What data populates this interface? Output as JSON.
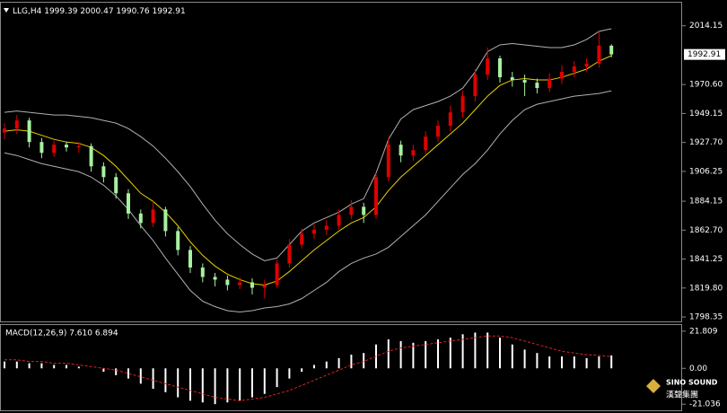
{
  "chart_data": [
    {
      "type": "candlestick",
      "title": "LLG,H4",
      "up_color": "#e00000",
      "down_color": "#a8f0a0",
      "open": [
        1935,
        1938,
        1944,
        1928,
        1920,
        1926,
        1924,
        1925,
        1910,
        1902,
        1890,
        1875,
        1868,
        1878,
        1862,
        1848,
        1835,
        1828,
        1826,
        1822,
        1824,
        1820,
        1822,
        1838,
        1852,
        1860,
        1863,
        1866,
        1874,
        1880,
        1874,
        1902,
        1926,
        1918,
        1922,
        1932,
        1940,
        1950,
        1962,
        1978,
        1990,
        1976,
        1974,
        1972,
        1968,
        1975,
        1980,
        1984,
        1986,
        1999.39
      ],
      "high": [
        1942,
        1948,
        1946,
        1931,
        1929,
        1928,
        1928,
        1927,
        1913,
        1905,
        1893,
        1878,
        1884,
        1880,
        1865,
        1851,
        1838,
        1831,
        1829,
        1828,
        1827,
        1826,
        1841,
        1856,
        1864,
        1867,
        1870,
        1878,
        1885,
        1883,
        1905,
        1931,
        1929,
        1926,
        1936,
        1944,
        1955,
        1966,
        1982,
        1998,
        1992,
        1980,
        1978,
        1975,
        1979,
        1985,
        1988,
        1990,
        2010,
        2000.47
      ],
      "low": [
        1930,
        1934,
        1924,
        1916,
        1917,
        1921,
        1920,
        1906,
        1898,
        1886,
        1871,
        1864,
        1865,
        1858,
        1844,
        1831,
        1824,
        1821,
        1818,
        1819,
        1815,
        1812,
        1820,
        1835,
        1849,
        1856,
        1859,
        1863,
        1871,
        1868,
        1871,
        1899,
        1913,
        1914,
        1919,
        1928,
        1936,
        1946,
        1958,
        1974,
        1972,
        1969,
        1962,
        1964,
        1965,
        1971,
        1976,
        1980,
        1983,
        1990.76
      ],
      "close": [
        1938,
        1944,
        1928,
        1920,
        1926,
        1924,
        1925,
        1910,
        1902,
        1890,
        1875,
        1868,
        1878,
        1862,
        1848,
        1835,
        1828,
        1826,
        1822,
        1824,
        1820,
        1822,
        1838,
        1852,
        1860,
        1863,
        1866,
        1874,
        1880,
        1874,
        1902,
        1926,
        1918,
        1922,
        1932,
        1940,
        1950,
        1962,
        1978,
        1990,
        1976,
        1974,
        1972,
        1968,
        1975,
        1980,
        1984,
        1986,
        1999.39,
        1992.91
      ],
      "series": [
        {
          "color": "#b0b0b0",
          "values": [
            1950,
            1951,
            1950,
            1949,
            1948,
            1948,
            1947,
            1946,
            1944,
            1942,
            1938,
            1932,
            1925,
            1916,
            1906,
            1895,
            1882,
            1870,
            1860,
            1852,
            1845,
            1840,
            1842,
            1852,
            1862,
            1868,
            1872,
            1876,
            1882,
            1886,
            1905,
            1930,
            1945,
            1952,
            1955,
            1958,
            1962,
            1968,
            1980,
            1995,
            2000,
            2001,
            2000,
            1999,
            1998,
            1998,
            2000,
            2004,
            2010,
            2012
          ]
        },
        {
          "color": "#b0b0b0",
          "values": [
            1920,
            1918,
            1915,
            1912,
            1910,
            1908,
            1906,
            1902,
            1896,
            1888,
            1878,
            1866,
            1855,
            1842,
            1830,
            1818,
            1810,
            1806,
            1803,
            1802,
            1803,
            1805,
            1806,
            1808,
            1812,
            1818,
            1824,
            1832,
            1838,
            1842,
            1845,
            1850,
            1858,
            1866,
            1874,
            1884,
            1894,
            1904,
            1912,
            1922,
            1934,
            1944,
            1952,
            1956,
            1958,
            1960,
            1962,
            1963,
            1964,
            1966
          ]
        },
        {
          "color": "#e8d200",
          "values": [
            1936,
            1937,
            1936,
            1933,
            1930,
            1928,
            1927,
            1924,
            1918,
            1910,
            1900,
            1890,
            1884,
            1876,
            1866,
            1854,
            1844,
            1836,
            1830,
            1826,
            1823,
            1822,
            1825,
            1832,
            1840,
            1848,
            1855,
            1862,
            1868,
            1872,
            1880,
            1892,
            1902,
            1910,
            1918,
            1926,
            1934,
            1942,
            1952,
            1962,
            1970,
            1974,
            1975,
            1974,
            1974,
            1976,
            1979,
            1982,
            1988,
            1992
          ]
        }
      ],
      "ylim": [
        1795.7,
        2030.6
      ],
      "yticks": [
        2014.15,
        {
          "value": 1970.6,
          "label": "1970.60"
        },
        1949.15,
        {
          "value": 1927.7,
          "label": "1927.70"
        },
        1906.25,
        1884.15,
        {
          "value": 1862.7,
          "label": "1862.70"
        },
        1841.25,
        {
          "value": 1819.8,
          "label": "1819.80"
        },
        1798.35
      ]
    },
    {
      "type": "macd",
      "title": "MACD(12,26,9) 7.610 6.894",
      "histogram": {
        "color": "#ffffff",
        "values": [
          4,
          4,
          3,
          3,
          2,
          2,
          1,
          0,
          -2,
          -4,
          -6,
          -9,
          -12,
          -14,
          -17,
          -19,
          -20,
          -21,
          -20,
          -19,
          -17,
          -15,
          -11,
          -6,
          -2,
          2,
          4,
          6,
          8,
          9,
          14,
          17,
          16,
          15,
          16,
          17,
          18,
          20,
          21,
          21,
          18,
          14,
          11,
          9,
          7,
          7,
          7,
          6,
          7,
          7.61
        ]
      },
      "signal": {
        "color": "#e02020",
        "values": [
          5,
          5,
          4,
          4,
          3,
          3,
          2,
          1,
          0,
          -1,
          -3,
          -5,
          -7,
          -9,
          -11,
          -13,
          -15,
          -17,
          -18,
          -19,
          -18,
          -17,
          -15,
          -13,
          -10,
          -7,
          -4,
          -1,
          2,
          4,
          7,
          10,
          12,
          13,
          14,
          15,
          16,
          17,
          18,
          19,
          19,
          18,
          16,
          14,
          12,
          10,
          9,
          8,
          7.6,
          6.894
        ]
      },
      "ylim": [
        -24.1,
        24.9
      ],
      "yticks": [
        21.809,
        {
          "value": 0,
          "label": "0.00"
        },
        -21.036
      ]
    }
  ],
  "watermark": {
    "name": "SINO SOUND",
    "subtitle": "漢聲集團"
  }
}
